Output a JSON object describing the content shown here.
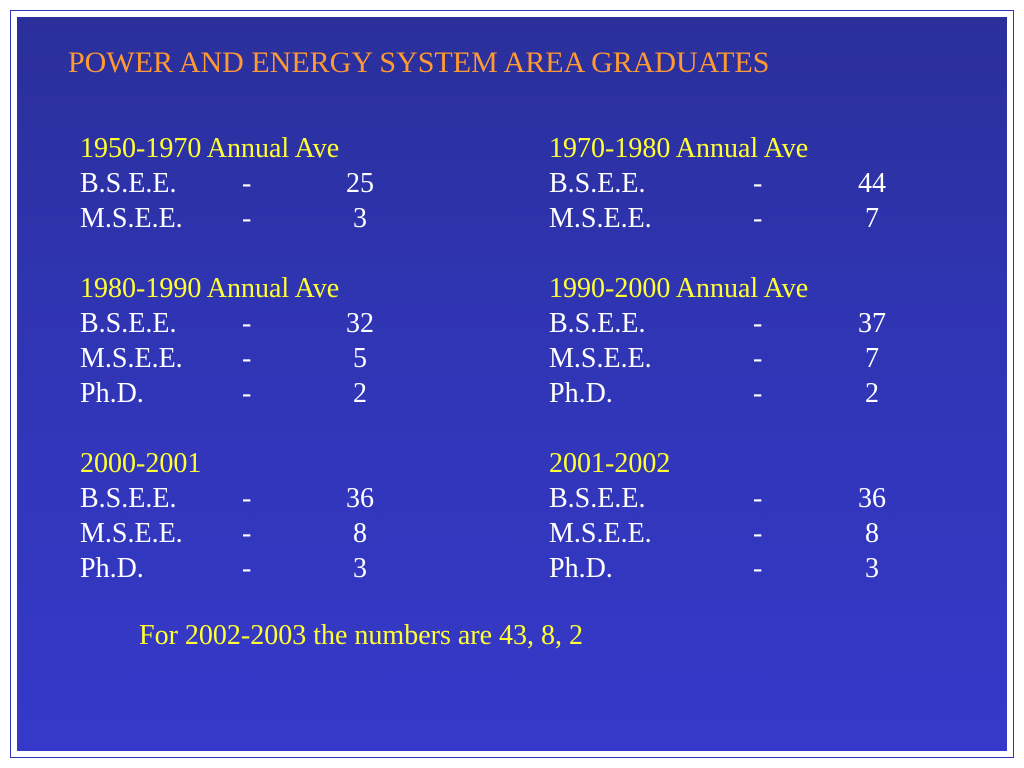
{
  "title": "POWER AND ENERGY SYSTEM AREA GRADUATES",
  "colors": {
    "background": "#3035b5",
    "title": "#ff9933",
    "heading": "#ffff33",
    "body_text": "#ffffff",
    "footer": "#ffff33",
    "border": "#ffffff"
  },
  "blocks": [
    {
      "heading": "1950-1970 Annual Ave",
      "rows": [
        {
          "label": "B.S.E.E.",
          "dash": "-",
          "value": "25"
        },
        {
          "label": "M.S.E.E.",
          "dash": "-",
          "value": "3"
        }
      ]
    },
    {
      "heading": "1970-1980 Annual Ave",
      "rows": [
        {
          "label": "B.S.E.E.",
          "dash": "-",
          "value": "44"
        },
        {
          "label": "M.S.E.E.",
          "dash": "-",
          "value": "7"
        }
      ]
    },
    {
      "heading": "1980-1990 Annual Ave",
      "rows": [
        {
          "label": "B.S.E.E.",
          "dash": "-",
          "value": "32"
        },
        {
          "label": "M.S.E.E.",
          "dash": "-",
          "value": "5"
        },
        {
          "label": "Ph.D.",
          "dash": "-",
          "value": "2"
        }
      ]
    },
    {
      "heading": "1990-2000 Annual Ave",
      "rows": [
        {
          "label": "B.S.E.E.",
          "dash": "-",
          "value": "37"
        },
        {
          "label": "M.S.E.E.",
          "dash": "-",
          "value": "7"
        },
        {
          "label": "Ph.D.",
          "dash": "-",
          "value": "2"
        }
      ]
    },
    {
      "heading": "2000-2001",
      "rows": [
        {
          "label": "B.S.E.E.",
          "dash": "-",
          "value": "36"
        },
        {
          "label": "M.S.E.E.",
          "dash": "-",
          "value": "8"
        },
        {
          "label": "Ph.D.",
          "dash": "-",
          "value": "3"
        }
      ]
    },
    {
      "heading": "2001-2002",
      "rows": [
        {
          "label": "B.S.E.E.",
          "dash": "-",
          "value": "36"
        },
        {
          "label": "M.S.E.E.",
          "dash": "-",
          "value": "8"
        },
        {
          "label": "Ph.D.",
          "dash": "-",
          "value": "3"
        }
      ]
    }
  ],
  "footer": "For 2002-2003 the numbers are 43, 8, 2"
}
